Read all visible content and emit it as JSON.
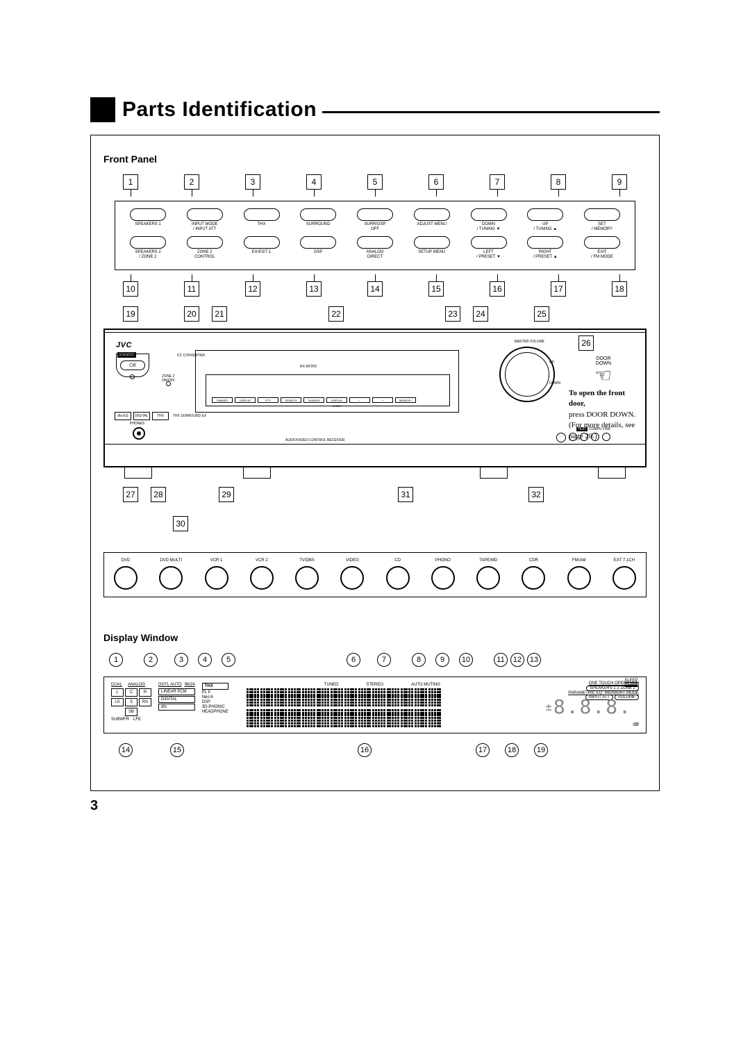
{
  "page_title": "Parts Identification",
  "page_number": "3",
  "sections": {
    "front_panel": "Front Panel",
    "display_window": "Display Window"
  },
  "button_panel": {
    "row1": [
      {
        "label": "SPEAKERS 1"
      },
      {
        "label": "INPUT MODE\n/ INPUT ATT"
      },
      {
        "label": "THX"
      },
      {
        "label": "SURROUND"
      },
      {
        "label": "SURR/DSP\nOFF"
      },
      {
        "label": "ADJUST MENU"
      },
      {
        "label": "DOWN\n/ TUNING ▼"
      },
      {
        "label": "UP\n/ TUNING ▲"
      },
      {
        "label": "SET\n/ MEMORY"
      }
    ],
    "row2": [
      {
        "label": "SPEAKERS 2\n/ ZONE 2"
      },
      {
        "label": "ZONE 2\nCONTROL"
      },
      {
        "label": "EX/ES/7.1"
      },
      {
        "label": "DSP"
      },
      {
        "label": "ANALOG\nDIRECT"
      },
      {
        "label": "SETUP MENU"
      },
      {
        "label": "LEFT\n/ PRESET ▼"
      },
      {
        "label": "RIGHT\n/ PRESET ▲"
      },
      {
        "label": "EXIT\n/ FM MODE"
      }
    ]
  },
  "callouts_top": [
    "1",
    "2",
    "3",
    "4",
    "5",
    "6",
    "7",
    "8",
    "9"
  ],
  "callouts_mid": [
    "10",
    "11",
    "12",
    "13",
    "14",
    "15",
    "16",
    "17",
    "18"
  ],
  "callouts_r3": [
    "19",
    "20",
    "21",
    "22",
    "23",
    "24",
    "25"
  ],
  "callouts_r4": [
    "27",
    "28",
    "29",
    "31",
    "32"
  ],
  "callout_26": "26",
  "callout_30": "30",
  "receiver": {
    "brand": "JVC",
    "standby": "STANDBY",
    "power": "⏻/I",
    "zone2": "ZONE 2\nON/OFF",
    "cc_converter": "CC CONVERTER",
    "model": "RX-DP20V",
    "master_volume": "MASTER VOLUME",
    "up": "UP",
    "down": "DOWN",
    "door_down": "DOOR\nDOWN",
    "phones": "PHONES",
    "receiver_text": "AUDIO/VIDEO CONTROL RECEIVER",
    "compulink": "COMPU LINK",
    "text_label": "TEXT",
    "thx_surround": "THX SURROUND EX",
    "mini_buttons": [
      "DIMMER",
      "DISPLAY",
      "PTY",
      "SEARCH",
      "TA/NEWS",
      "DISPLAY MODE",
      "−",
      "+",
      "MEMORY"
    ],
    "logos": [
      "dts-ES",
      "DIGITAL",
      "THX"
    ]
  },
  "door_note": {
    "bold": "To open the front door,",
    "line2": "press DOOR DOWN.",
    "line3": "(For more details, see",
    "line4": "page 20.)"
  },
  "sources": [
    "DVD",
    "DVD MULTI",
    "VCR 1",
    "VCR 2",
    "TV/DBS",
    "VIDEO",
    "CD",
    "PHONO",
    "TAPE/MD",
    "CDR",
    "FM/AM",
    "EXT 7.1CH"
  ],
  "display_window_data": {
    "top_labels": [
      "DUAL",
      "ANALOG",
      "DGTL AUTO",
      "96/24"
    ],
    "channels": [
      "L",
      "C",
      "R",
      "LS",
      "S",
      "RS",
      "SB"
    ],
    "subwfr": "SUBWFR",
    "lfe": "LFE",
    "formats": [
      "LINEAR PCM",
      "DIGITAL",
      "dts"
    ],
    "thx": "THX",
    "modes": [
      "PL II",
      "Neo:6",
      "DSP",
      "3D-PHONIC",
      "HEADPHONE"
    ],
    "tuned": "TUNED",
    "stereo": "STEREO",
    "auto_muting": "AUTO MUTING",
    "one_touch": "ONE TOUCH OPERATION",
    "speakers_ind": "SPEAKERS 1 2 ZONE 2",
    "parametric": "PARAMETRIC EQ",
    "midnight": "MIDNIGHT MODE",
    "input_att": "INPUT ATT",
    "volume": "VOLUME",
    "sleep": "SLEEP",
    "biamp": "BI-AMP",
    "seven_seg": "8.8.8.",
    "db": "dB"
  },
  "dw_circled_top": [
    "1",
    "2",
    "3",
    "4",
    "5",
    "6",
    "7",
    "8",
    "9",
    "10",
    "11",
    "12",
    "13"
  ],
  "dw_circled_bottom": [
    "14",
    "15",
    "16",
    "17",
    "18",
    "19"
  ],
  "colors": {
    "fg": "#000000",
    "bg": "#ffffff"
  }
}
